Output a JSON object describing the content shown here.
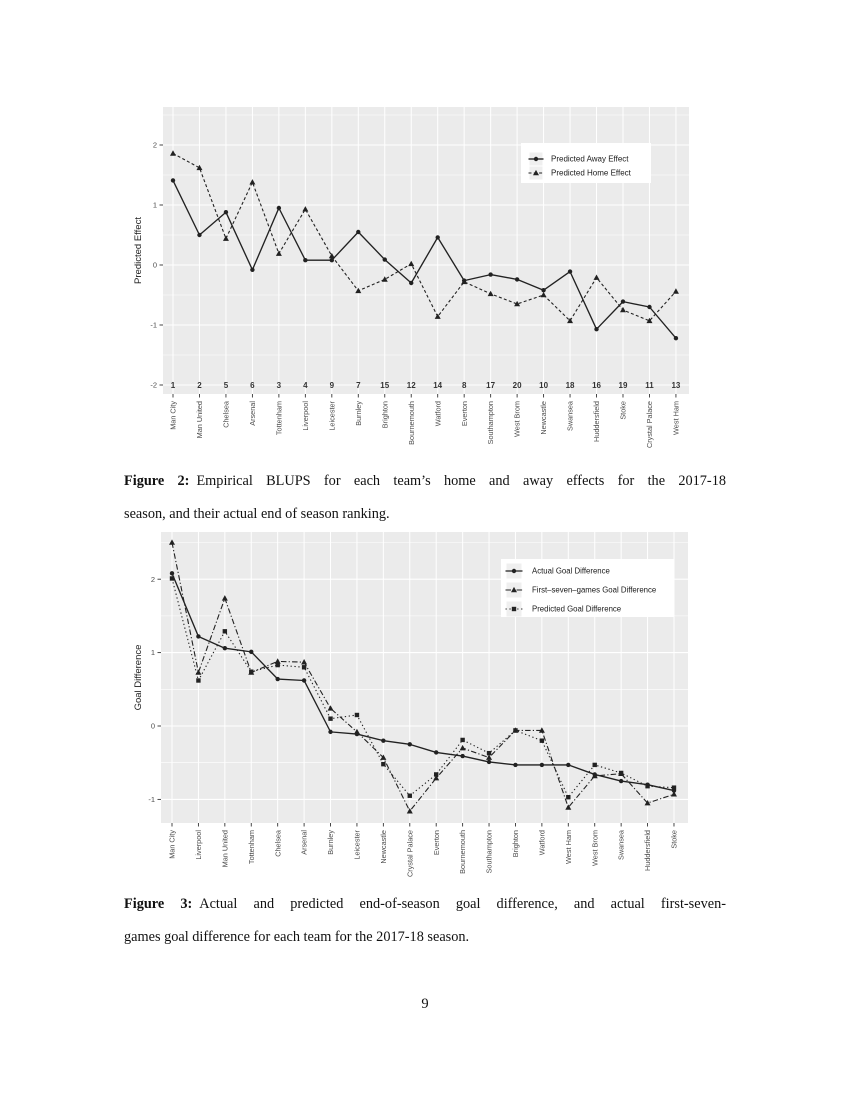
{
  "page": {
    "number": "9"
  },
  "captions": {
    "fig2": {
      "label": "Figure 2:",
      "line1": "Empirical BLUPS for each team’s home and away effects for the 2017-18",
      "line2": "season, and their actual end of season ranking."
    },
    "fig3": {
      "label": "Figure 3:",
      "line1": "Actual and predicted end-of-season goal difference, and actual first-seven-",
      "line2": "games goal difference for each team for the 2017-18 season."
    }
  },
  "colors": {
    "panel": "#ebebeb",
    "grid": "#ffffff",
    "ink": "#222222",
    "axis_tick": "#333333",
    "tick_label": "#4d4d4d",
    "rank_label": "#333333",
    "legend_bg": "#ffffff",
    "legend_key_bg": "#efefef",
    "legend_text": "#1a1a1a"
  },
  "chart_data": [
    {
      "id": "fig2",
      "type": "line",
      "title": "",
      "xlabel": "",
      "ylabel": "Predicted Effect",
      "ylim": [
        -2.15,
        2.63
      ],
      "yticks": [
        -2,
        -1,
        0,
        1,
        2
      ],
      "grid": "white major+minor horizontal and major vertical gridlines on gray panel",
      "legend_position": "inside top-right",
      "categories": [
        "Man City",
        "Man United",
        "Chelsea",
        "Arsenal",
        "Tottenham",
        "Liverpool",
        "Leicester",
        "Burnley",
        "Brighton",
        "Bournemouth",
        "Watford",
        "Everton",
        "Southampton",
        "West Brom",
        "Newcastle",
        "Swansea",
        "Huddersfield",
        "Stoke",
        "Crystal Palace",
        "West Ham"
      ],
      "ranks": [
        "1",
        "2",
        "5",
        "6",
        "3",
        "4",
        "9",
        "7",
        "15",
        "12",
        "14",
        "8",
        "17",
        "20",
        "10",
        "18",
        "16",
        "19",
        "11",
        "13"
      ],
      "series": [
        {
          "name": "Predicted Away Effect",
          "marker": "circle",
          "line": "solid",
          "values": [
            1.41,
            0.5,
            0.88,
            -0.08,
            0.95,
            0.08,
            0.08,
            0.55,
            0.09,
            -0.3,
            0.46,
            -0.26,
            -0.16,
            -0.24,
            -0.42,
            -0.11,
            -1.07,
            -0.61,
            -0.7,
            -1.22
          ]
        },
        {
          "name": "Predicted Home Effect",
          "marker": "triangle",
          "line": "dashed",
          "values": [
            1.86,
            1.62,
            0.44,
            1.38,
            0.19,
            0.93,
            0.15,
            -0.43,
            -0.24,
            0.02,
            -0.86,
            -0.28,
            -0.48,
            -0.65,
            -0.5,
            -0.93,
            -0.21,
            -0.75,
            -0.93,
            -0.44
          ]
        }
      ]
    },
    {
      "id": "fig3",
      "type": "line",
      "title": "",
      "xlabel": "",
      "ylabel": "Goal Difference",
      "ylim": [
        -1.32,
        2.64
      ],
      "yticks": [
        -1,
        0,
        1,
        2
      ],
      "grid": "white major+minor horizontal and major vertical gridlines on gray panel",
      "legend_position": "inside top-right",
      "categories": [
        "Man City",
        "Liverpool",
        "Man United",
        "Tottenham",
        "Chelsea",
        "Arsenal",
        "Burnley",
        "Leicester",
        "Newcastle",
        "Crystal Palace",
        "Everton",
        "Bournemouth",
        "Southampton",
        "Brighton",
        "Watford",
        "West Ham",
        "West Brom",
        "Swansea",
        "Huddersfield",
        "Stoke"
      ],
      "series": [
        {
          "name": "Actual Goal Difference",
          "marker": "circle",
          "line": "solid",
          "values": [
            2.08,
            1.22,
            1.06,
            1.01,
            0.64,
            0.62,
            -0.08,
            -0.11,
            -0.2,
            -0.25,
            -0.36,
            -0.41,
            -0.49,
            -0.53,
            -0.53,
            -0.53,
            -0.66,
            -0.75,
            -0.8,
            -0.88
          ]
        },
        {
          "name": "First–seven–games Goal Difference",
          "marker": "triangle",
          "line": "dashdot",
          "values": [
            2.5,
            0.73,
            1.74,
            0.73,
            0.88,
            0.87,
            0.24,
            -0.08,
            -0.43,
            -1.16,
            -0.71,
            -0.3,
            -0.43,
            -0.06,
            -0.06,
            -1.11,
            -0.68,
            -0.65,
            -1.05,
            -0.93
          ]
        },
        {
          "name": "Predicted Goal Difference",
          "marker": "square",
          "line": "dotted",
          "values": [
            2.01,
            0.62,
            1.29,
            0.74,
            0.83,
            0.8,
            0.1,
            0.15,
            -0.52,
            -0.95,
            -0.66,
            -0.19,
            -0.37,
            -0.06,
            -0.2,
            -0.97,
            -0.53,
            -0.64,
            -0.82,
            -0.84
          ]
        }
      ]
    }
  ]
}
